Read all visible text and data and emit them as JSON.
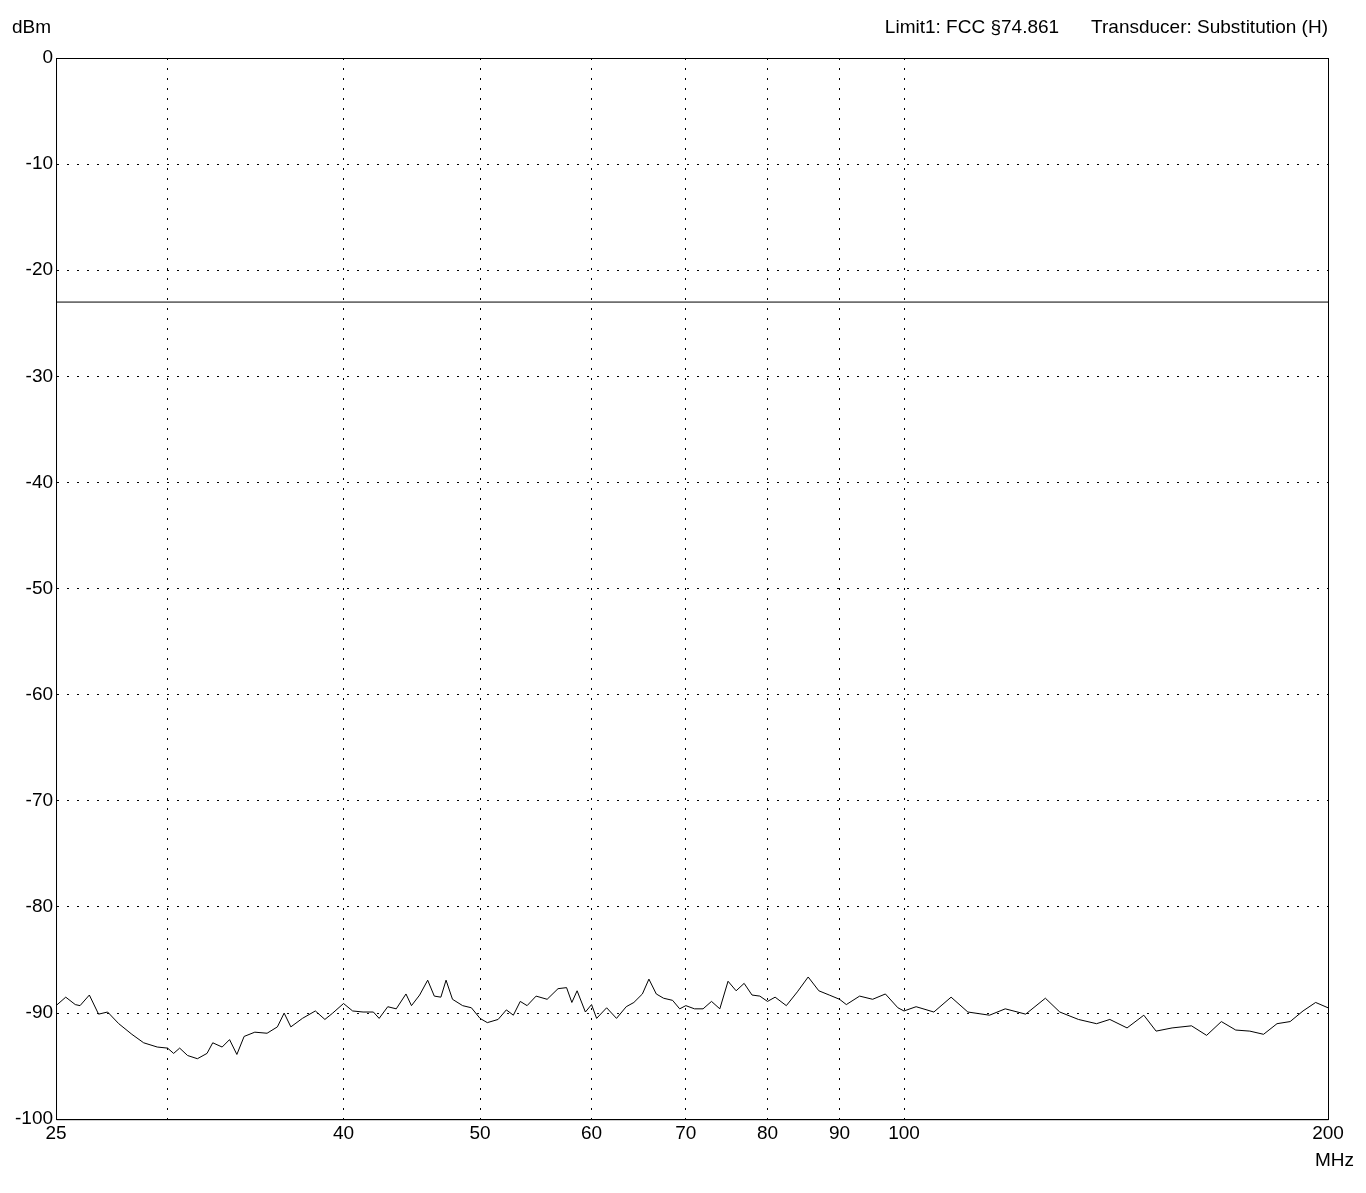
{
  "chart_data": {
    "type": "line",
    "xlabel": "MHz",
    "ylabel": "dBm",
    "annotations": [
      "Limit1: FCC §74.861",
      "Transducer: Substitution (H)"
    ],
    "log": "x",
    "xlim": [
      25,
      200
    ],
    "xticks": [
      25,
      {
        "value": 30,
        "label": null
      },
      40,
      50,
      60,
      70,
      80,
      90,
      100,
      200
    ],
    "ylim": [
      -100,
      0
    ],
    "yticks": [
      -100,
      -90,
      -80,
      -70,
      -60,
      -50,
      -40,
      -30,
      -20,
      -10,
      0
    ],
    "grid": true,
    "legend": false,
    "marker": "none",
    "line_style": "solid",
    "ref_lines": [
      {
        "axis": "y",
        "value": -23,
        "color": "#000000",
        "line_style": "solid"
      }
    ],
    "series": [
      {
        "color": "#000000",
        "x": [
          25,
          25.4,
          25.8,
          26.0,
          26.4,
          26.8,
          27.2,
          27.7,
          28.3,
          28.85,
          29.5,
          30,
          30.3,
          30.6,
          31.0,
          31.5,
          32.0,
          32.3,
          32.8,
          33.2,
          33.6,
          34.0,
          34.6,
          35.3,
          35.9,
          36.3,
          36.7,
          37.4,
          38.2,
          38.8,
          39.3,
          40.0,
          40.6,
          41.3,
          42.0,
          42.4,
          43.0,
          43.6,
          44.3,
          44.7,
          45.3,
          45.9,
          46.4,
          46.9,
          47.3,
          47.8,
          48.6,
          49.3,
          50,
          50.6,
          51.5,
          52.2,
          52.8,
          53.4,
          54,
          54.8,
          55.8,
          56.8,
          57.6,
          58.1,
          58.6,
          59.4,
          60,
          60.5,
          61.5,
          62.5,
          63.5,
          64.3,
          65.2,
          65.9,
          66.7,
          67.5,
          68.5,
          69.3,
          70,
          71,
          72,
          73,
          74,
          75,
          76,
          77,
          78,
          79,
          80,
          81,
          82.5,
          84,
          85.5,
          87,
          88.5,
          90,
          91,
          93,
          95,
          97,
          99,
          100,
          102,
          105,
          108,
          111,
          115,
          118,
          122,
          126,
          129,
          133,
          137,
          140,
          144,
          148,
          151,
          155,
          160,
          164,
          168,
          172,
          176,
          180,
          184,
          188,
          192,
          196,
          200
        ],
        "values": [
          -89.3,
          -88.5,
          -89.2,
          -89.3,
          -88.3,
          -90.1,
          -89.9,
          -91.0,
          -92.0,
          -92.8,
          -93.2,
          -93.3,
          -93.8,
          -93.3,
          -94.0,
          -94.3,
          -93.8,
          -92.8,
          -93.2,
          -92.5,
          -93.9,
          -92.2,
          -91.8,
          -91.9,
          -91.3,
          -90.0,
          -91.3,
          -90.5,
          -89.8,
          -90.6,
          -90.0,
          -89.1,
          -89.8,
          -89.9,
          -89.9,
          -90.5,
          -89.4,
          -89.6,
          -88.2,
          -89.3,
          -88.3,
          -86.9,
          -88.4,
          -88.5,
          -86.9,
          -88.7,
          -89.3,
          -89.5,
          -90.5,
          -90.9,
          -90.6,
          -89.7,
          -90.2,
          -88.9,
          -89.3,
          -88.4,
          -88.7,
          -87.7,
          -87.6,
          -89.0,
          -87.9,
          -89.9,
          -89.2,
          -90.5,
          -89.5,
          -90.5,
          -89.4,
          -89.0,
          -88.2,
          -86.8,
          -88.2,
          -88.6,
          -88.8,
          -89.6,
          -89.3,
          -89.6,
          -89.6,
          -88.9,
          -89.6,
          -87.0,
          -87.9,
          -87.2,
          -88.3,
          -88.4,
          -88.9,
          -88.5,
          -89.3,
          -88.0,
          -86.6,
          -87.9,
          -88.3,
          -88.7,
          -89.2,
          -88.4,
          -88.7,
          -88.2,
          -89.5,
          -89.8,
          -89.4,
          -89.9,
          -88.5,
          -89.9,
          -90.2,
          -89.6,
          -90.1,
          -88.6,
          -89.9,
          -90.6,
          -91.0,
          -90.6,
          -91.4,
          -90.2,
          -91.7,
          -91.4,
          -91.2,
          -92.1,
          -90.8,
          -91.6,
          -91.7,
          -92.0,
          -91.0,
          -90.8,
          -89.8,
          -89.0,
          -89.5
        ]
      }
    ]
  }
}
